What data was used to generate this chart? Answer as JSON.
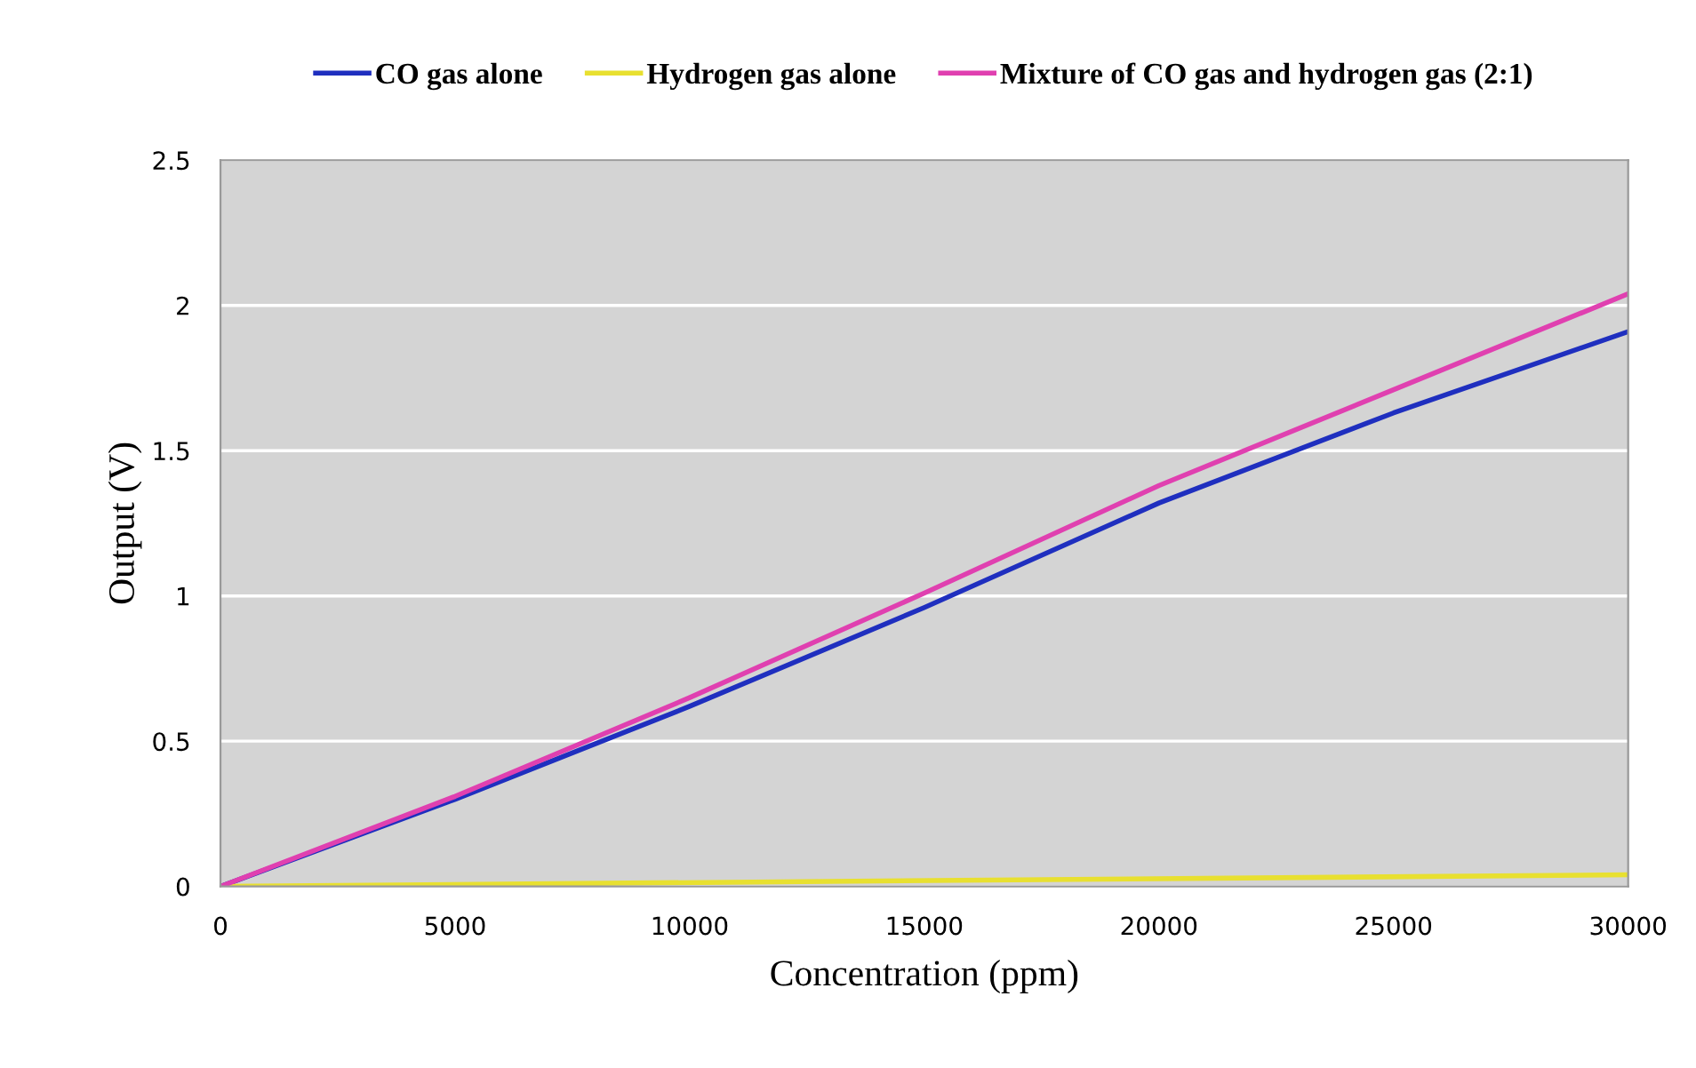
{
  "chart_data": {
    "type": "line",
    "xlabel": "Concentration (ppm)",
    "ylabel": "Output (V)",
    "xlim": [
      0,
      30000
    ],
    "xticks": [
      0,
      5000,
      10000,
      15000,
      20000,
      25000,
      30000
    ],
    "ylim": [
      0,
      2.5
    ],
    "yticks": [
      0,
      0.5,
      1,
      1.5,
      2,
      2.5
    ],
    "grid": "y",
    "legend": "top",
    "marker": "none",
    "line_style": "solid",
    "series": [
      {
        "name": "CO gas alone",
        "color": "#1f2fbf",
        "x": [
          0,
          5000,
          10000,
          15000,
          20000,
          25000,
          30000
        ],
        "values": [
          0,
          0.3,
          0.62,
          0.96,
          1.32,
          1.63,
          1.91
        ]
      },
      {
        "name": "Hydrogen gas alone",
        "color": "#e8e030",
        "x": [
          0,
          30000
        ],
        "values": [
          0,
          0.04
        ]
      },
      {
        "name": "Mixture of CO gas and hydrogen gas (2:1)",
        "color": "#e040b0",
        "x": [
          0,
          5000,
          10000,
          15000,
          20000,
          25000,
          30000
        ],
        "values": [
          0,
          0.31,
          0.65,
          1.01,
          1.38,
          1.71,
          2.04
        ]
      }
    ]
  }
}
